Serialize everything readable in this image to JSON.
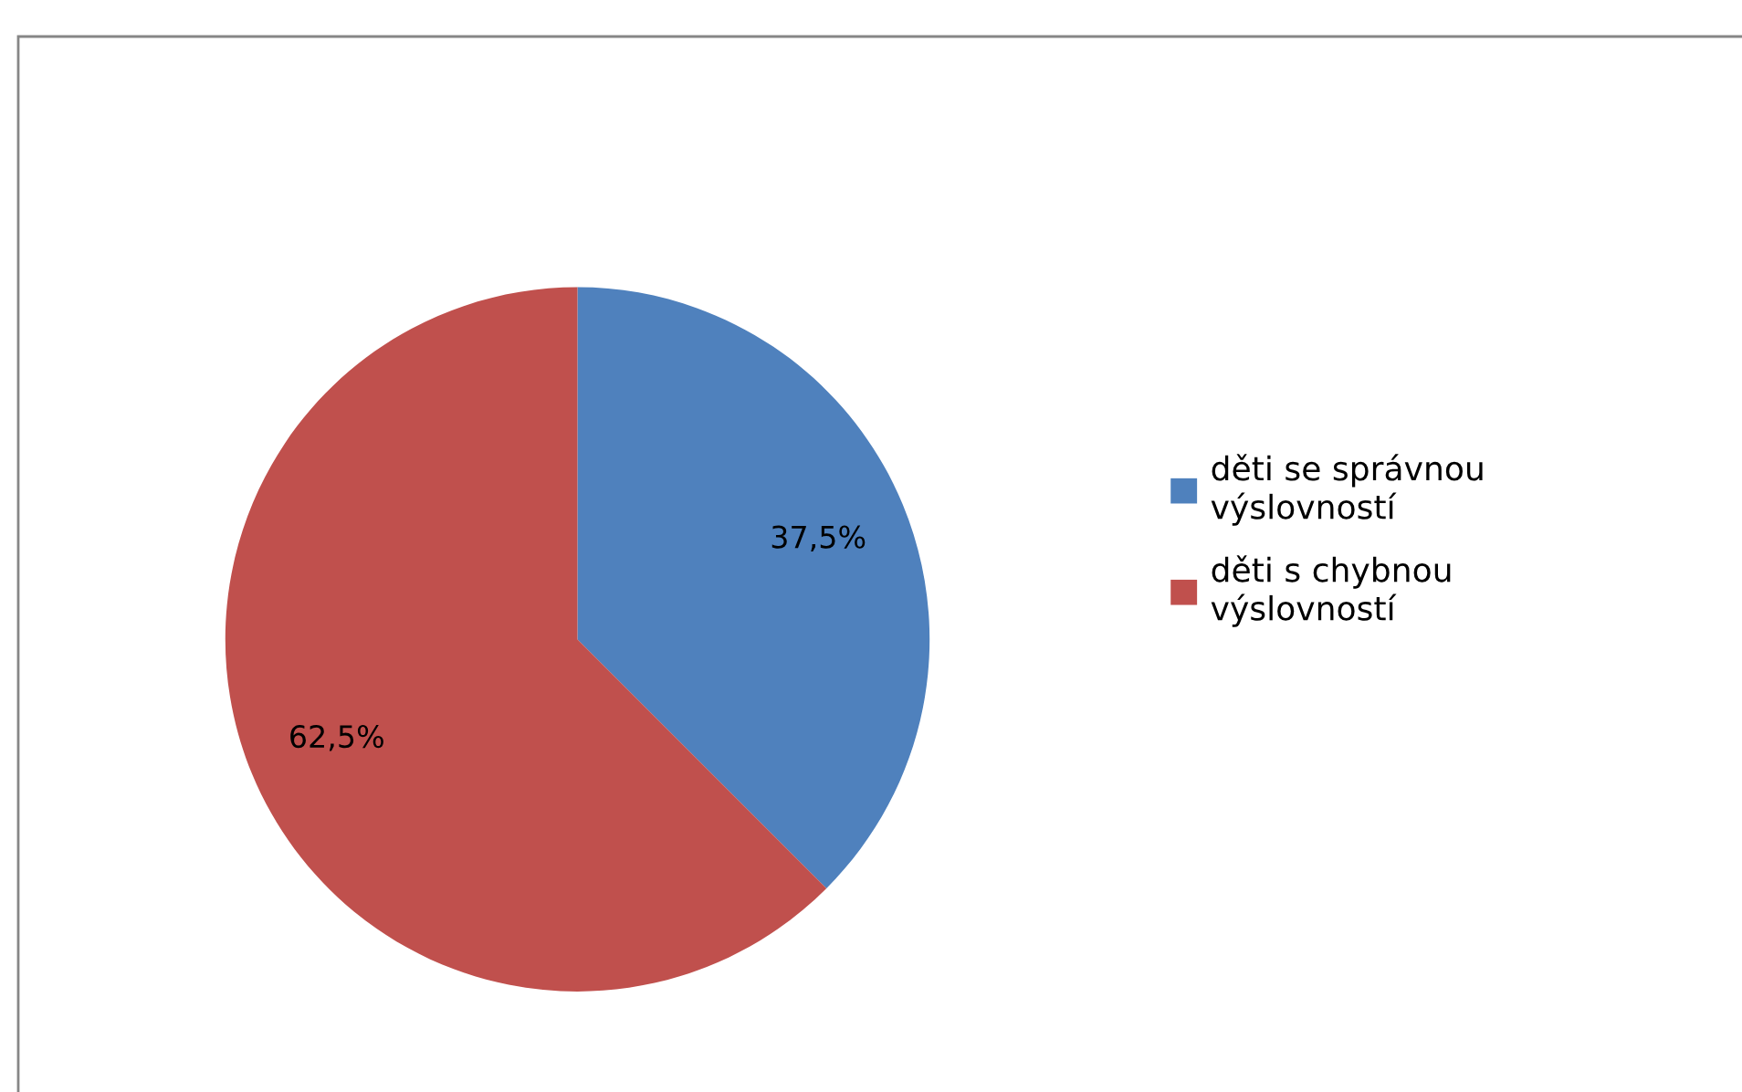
{
  "chart_data": {
    "type": "pie",
    "categories": [
      "děti se správnou výslovností",
      "děti s chybnou výslovností"
    ],
    "values": [
      37.5,
      62.5
    ],
    "colors": [
      "#4f81bd",
      "#c0504d"
    ],
    "value_labels": [
      "37,5%",
      "62,5%"
    ],
    "legend": "right"
  }
}
